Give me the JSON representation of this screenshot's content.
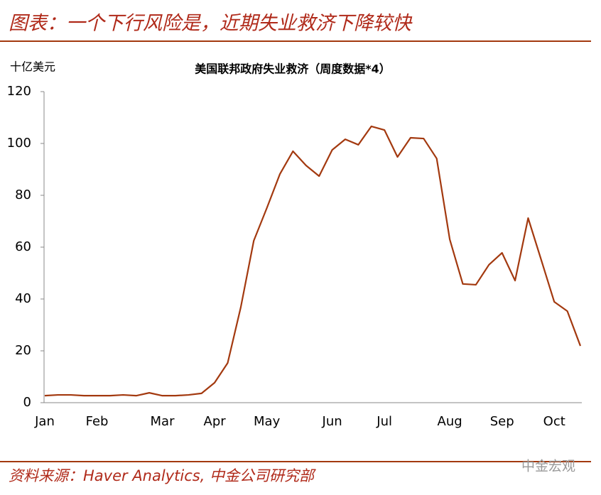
{
  "header": {
    "title": "图表：一个下行风险是，近期失业救济下降较快"
  },
  "chart_data": {
    "type": "line",
    "title": "美国联邦政府失业救济（周度数据*4）",
    "y_label": "十亿美元",
    "categories": [
      "Jan",
      null,
      null,
      null,
      "Feb",
      null,
      null,
      null,
      null,
      "Mar",
      null,
      null,
      null,
      "Apr",
      null,
      null,
      null,
      "May",
      null,
      null,
      null,
      null,
      "Jun",
      null,
      null,
      null,
      "Jul",
      null,
      null,
      null,
      null,
      "Aug",
      null,
      null,
      null,
      "Sep",
      null,
      null,
      null,
      "Oct",
      null,
      null
    ],
    "series": [
      {
        "name": "美国联邦政府失业救济",
        "color": "#a3390f",
        "values": [
          2.7,
          3.0,
          3.0,
          2.7,
          2.7,
          2.7,
          3.0,
          2.7,
          3.8,
          2.7,
          2.7,
          3.0,
          3.6,
          7.7,
          15.3,
          36.7,
          62.5,
          75.1,
          88.2,
          97.0,
          91.5,
          87.4,
          97.5,
          101.6,
          99.5,
          106.6,
          105.2,
          94.8,
          102.2,
          101.9,
          94.2,
          63.0,
          45.8,
          45.5,
          53.2,
          57.8,
          47.1,
          71.2,
          55.1,
          38.9,
          35.3,
          21.9
        ]
      }
    ],
    "ylim": [
      0,
      120
    ],
    "yticks": [
      0,
      20,
      40,
      60,
      80,
      100,
      120
    ],
    "grid": false
  },
  "footer": {
    "source": "资料来源：Haver Analytics, 中金公司研究部",
    "watermark": "中金宏观"
  }
}
